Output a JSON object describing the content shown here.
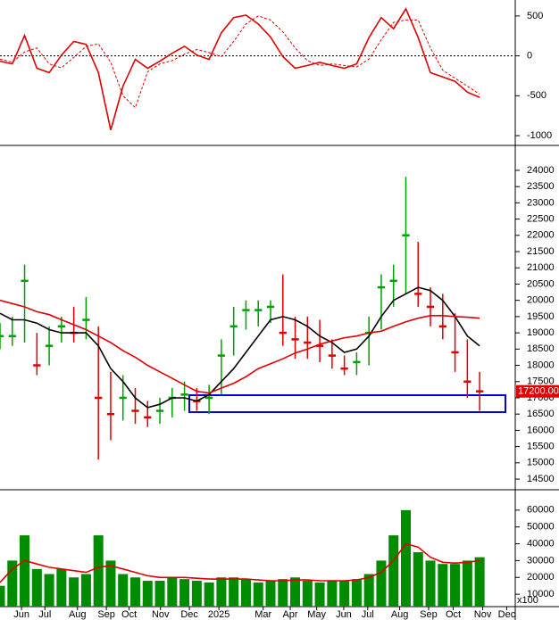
{
  "chart_data": [
    {
      "type": "line",
      "ylim": [
        -1089,
        678
      ],
      "yticks": [
        -1000,
        -500,
        0,
        500
      ],
      "zero_line": true,
      "xlim": [
        0,
        41.75
      ],
      "series": [
        {
          "color": "#e00000",
          "values": [
            -67,
            -100,
            255,
            -155,
            -210,
            10,
            180,
            145,
            -210,
            -930,
            -380,
            -45,
            -155,
            -67,
            33,
            120,
            10,
            -45,
            290,
            480,
            510,
            400,
            235,
            -10,
            -155,
            -120,
            -80,
            -120,
            -155,
            -100,
            230,
            480,
            340,
            590,
            230,
            -210,
            -265,
            -320,
            -455,
            -520
          ]
        },
        {
          "color": "#e00000",
          "dash": true,
          "values": [
            -40,
            -80,
            50,
            100,
            -100,
            -150,
            -20,
            120,
            150,
            -80,
            -500,
            -650,
            -200,
            -100,
            -60,
            20,
            80,
            40,
            -10,
            180,
            400,
            500,
            450,
            300,
            100,
            -60,
            -120,
            -100,
            -120,
            -140,
            -40,
            200,
            420,
            450,
            450,
            100,
            -180,
            -280,
            -380,
            -480
          ]
        }
      ]
    },
    {
      "type": "candlestick",
      "ylim": [
        14199,
        24685
      ],
      "xlim": [
        0,
        41.75
      ],
      "yticks": [
        14500,
        15000,
        15500,
        16000,
        16500,
        17000,
        17500,
        18000,
        18500,
        19000,
        19500,
        20000,
        20500,
        21000,
        21500,
        22000,
        22500,
        23000,
        23500,
        24000
      ],
      "up_color": "#00a000",
      "down_color": "#e00000",
      "high": [
        19300,
        19500,
        21100,
        19000,
        19200,
        19500,
        19800,
        20100,
        19200,
        17800,
        17700,
        17300,
        16900,
        17000,
        17300,
        17500,
        17300,
        17400,
        18800,
        19800,
        20000,
        20000,
        20000,
        20800,
        19500,
        19500,
        19400,
        18800,
        18300,
        18400,
        19500,
        20800,
        21100,
        23800,
        21800,
        20400,
        20200,
        19600,
        18800,
        17800
      ],
      "low": [
        18500,
        18600,
        18700,
        17700,
        18000,
        18700,
        18700,
        18800,
        15100,
        15700,
        16300,
        16200,
        16100,
        16200,
        16400,
        16600,
        16600,
        16500,
        17100,
        18300,
        19100,
        19200,
        19300,
        18600,
        18200,
        18200,
        18100,
        17900,
        17700,
        17700,
        18000,
        19100,
        19800,
        20200,
        19800,
        19200,
        18800,
        17800,
        17000,
        16600
      ],
      "close": [
        18900,
        18900,
        20600,
        18000,
        18600,
        19200,
        19000,
        19400,
        17000,
        16500,
        17000,
        16600,
        16400,
        16600,
        17000,
        17100,
        16900,
        17000,
        18300,
        19200,
        19700,
        19700,
        19800,
        19000,
        18800,
        18700,
        18600,
        18300,
        17900,
        18100,
        19000,
        20400,
        20600,
        22000,
        20200,
        19800,
        19200,
        18400,
        17500,
        17200
      ],
      "series": [
        {
          "color": "#000000",
          "values": [
            19600,
            19400,
            19400,
            19300,
            19100,
            19000,
            19000,
            19000,
            18600,
            17900,
            17500,
            17000,
            16700,
            16800,
            17000,
            17000,
            16900,
            17100,
            17500,
            17900,
            18400,
            18900,
            19400,
            19500,
            19400,
            19200,
            18900,
            18700,
            18400,
            18500,
            18900,
            19500,
            20000,
            20200,
            20400,
            20300,
            20000,
            19500,
            18900,
            18600
          ]
        },
        {
          "color": "#e00000",
          "values": [
            20000,
            19900,
            19800,
            19650,
            19560,
            19400,
            19250,
            19100,
            18900,
            18700,
            18450,
            18250,
            18000,
            17800,
            17600,
            17400,
            17200,
            17150,
            17300,
            17450,
            17650,
            17900,
            18050,
            18200,
            18380,
            18500,
            18650,
            18750,
            18850,
            18900,
            19000,
            19050,
            19200,
            19340,
            19450,
            19530,
            19530,
            19500,
            19480,
            19450
          ]
        }
      ],
      "last_label": {
        "value": 17200,
        "label": "17200.00"
      }
    },
    {
      "type": "bar",
      "ylim": [
        2632,
        71050
      ],
      "xlim": [
        0,
        41.75
      ],
      "color": "#008c00",
      "unit_label": "x100",
      "yticks": [
        10000,
        20000,
        30000,
        40000,
        50000,
        60000
      ],
      "values": [
        15000,
        30000,
        45000,
        25000,
        22000,
        25000,
        20000,
        22000,
        45000,
        30000,
        22000,
        20000,
        18000,
        18000,
        20000,
        19000,
        18000,
        17000,
        20000,
        20000,
        19000,
        17000,
        18000,
        19000,
        20000,
        18000,
        17000,
        18000,
        18000,
        19000,
        22000,
        30000,
        45000,
        60000,
        35000,
        30000,
        28000,
        28000,
        30000,
        32000
      ],
      "series": [
        {
          "color": "#e00000",
          "values": [
            17000,
            25000,
            30000,
            28000,
            26000,
            25000,
            24000,
            23000,
            26000,
            27000,
            25000,
            23000,
            21000,
            20000,
            20000,
            20000,
            19500,
            19000,
            19000,
            19000,
            19000,
            18500,
            18000,
            18000,
            18500,
            18500,
            18000,
            18000,
            18000,
            18500,
            20000,
            23000,
            30000,
            40000,
            38000,
            32000,
            29000,
            28500,
            29000,
            30000
          ]
        }
      ],
      "xticks": [
        {
          "value": 1.75,
          "label": "Jun"
        },
        {
          "value": 3.65,
          "label": "Jul"
        },
        {
          "value": 6.3,
          "label": "Aug"
        },
        {
          "value": 8.65,
          "label": "Sep"
        },
        {
          "value": 10.5,
          "label": "Oct"
        },
        {
          "value": 13.05,
          "label": "Nov"
        },
        {
          "value": 15.4,
          "label": "Dec"
        },
        {
          "value": 17.8,
          "label": "2025"
        },
        {
          "value": 21.4,
          "label": "Mar"
        },
        {
          "value": 23.6,
          "label": "Apr"
        },
        {
          "value": 25.75,
          "label": "May"
        },
        {
          "value": 27.95,
          "label": "Jun"
        },
        {
          "value": 29.9,
          "label": "Jul"
        },
        {
          "value": 32.5,
          "label": "Aug"
        },
        {
          "value": 34.85,
          "label": "Sep"
        },
        {
          "value": 36.85,
          "label": "Oct"
        },
        {
          "value": 39.25,
          "label": "Nov"
        },
        {
          "value": 41.2,
          "label": "Dec"
        }
      ]
    }
  ]
}
